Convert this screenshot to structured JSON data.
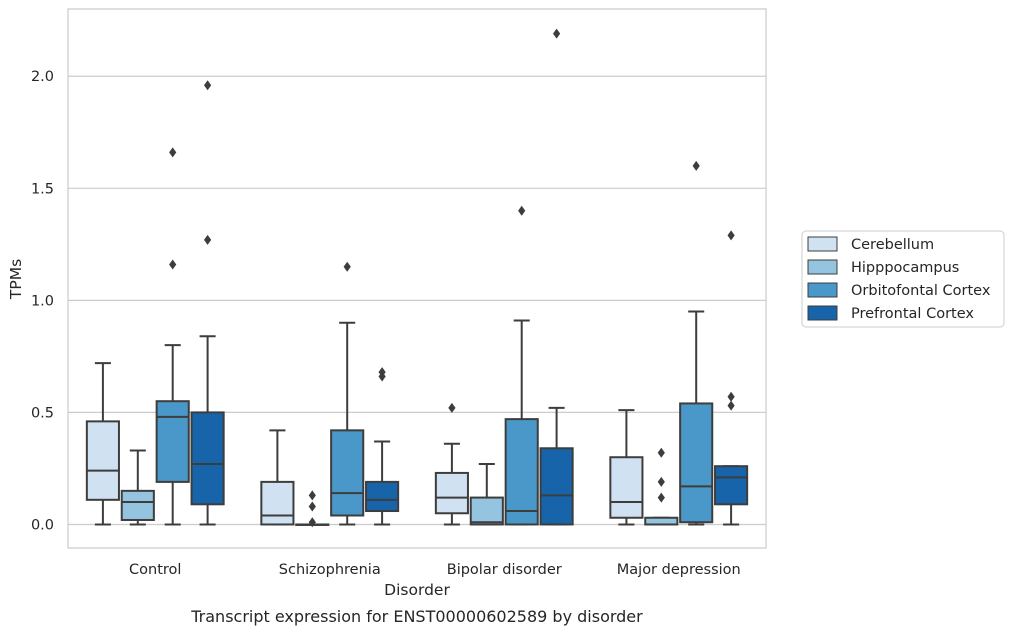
{
  "chart_data": {
    "type": "box",
    "caption": "Transcript expression for ENST00000602589 by disorder",
    "xlabel": "Disorder",
    "ylabel": "TPMs",
    "ylim": [
      -0.105,
      2.3
    ],
    "yticks": [
      0.0,
      0.5,
      1.0,
      1.5,
      2.0
    ],
    "ytick_labels": [
      "0.0",
      "0.5",
      "1.0",
      "1.5",
      "2.0"
    ],
    "categories": [
      "Control",
      "Schizophrenia",
      "Bipolar disorder",
      "Major depression"
    ],
    "grid": "horizontal",
    "legend_position": "right",
    "series": [
      {
        "name": "Cerebellum",
        "color": "#d0e1f2",
        "boxes": [
          {
            "whislo": 0.0,
            "q1": 0.11,
            "med": 0.24,
            "q3": 0.46,
            "whishi": 0.72,
            "fliers": []
          },
          {
            "whislo": 0.0,
            "q1": 0.0,
            "med": 0.04,
            "q3": 0.19,
            "whishi": 0.42,
            "fliers": []
          },
          {
            "whislo": 0.0,
            "q1": 0.05,
            "med": 0.12,
            "q3": 0.23,
            "whishi": 0.36,
            "fliers": [
              0.52
            ]
          },
          {
            "whislo": 0.0,
            "q1": 0.03,
            "med": 0.1,
            "q3": 0.3,
            "whishi": 0.51,
            "fliers": []
          }
        ]
      },
      {
        "name": "Hipppocampus",
        "color": "#94c4df",
        "boxes": [
          {
            "whislo": 0.0,
            "q1": 0.02,
            "med": 0.1,
            "q3": 0.15,
            "whishi": 0.33,
            "fliers": []
          },
          {
            "whislo": 0.0,
            "q1": 0.0,
            "med": 0.0,
            "q3": 0.0,
            "whishi": 0.0,
            "fliers": [
              0.13,
              0.08,
              0.01
            ]
          },
          {
            "whislo": 0.0,
            "q1": 0.0,
            "med": 0.01,
            "q3": 0.12,
            "whishi": 0.27,
            "fliers": []
          },
          {
            "whislo": 0.0,
            "q1": 0.0,
            "med": 0.0,
            "q3": 0.03,
            "whishi": 0.03,
            "fliers": [
              0.32,
              0.19,
              0.12
            ]
          }
        ]
      },
      {
        "name": "Orbitofontal Cortex",
        "color": "#4a98c9",
        "boxes": [
          {
            "whislo": 0.0,
            "q1": 0.19,
            "med": 0.48,
            "q3": 0.55,
            "whishi": 0.8,
            "fliers": [
              1.66,
              1.16
            ]
          },
          {
            "whislo": 0.0,
            "q1": 0.04,
            "med": 0.14,
            "q3": 0.42,
            "whishi": 0.9,
            "fliers": [
              1.15
            ]
          },
          {
            "whislo": 0.0,
            "q1": 0.0,
            "med": 0.06,
            "q3": 0.47,
            "whishi": 0.91,
            "fliers": [
              1.4
            ]
          },
          {
            "whislo": 0.0,
            "q1": 0.01,
            "med": 0.17,
            "q3": 0.54,
            "whishi": 0.95,
            "fliers": [
              1.6
            ]
          }
        ]
      },
      {
        "name": "Prefrontal Cortex",
        "color": "#1764ab",
        "boxes": [
          {
            "whislo": 0.0,
            "q1": 0.09,
            "med": 0.27,
            "q3": 0.5,
            "whishi": 0.84,
            "fliers": [
              1.96,
              1.27
            ]
          },
          {
            "whislo": 0.0,
            "q1": 0.06,
            "med": 0.11,
            "q3": 0.19,
            "whishi": 0.37,
            "fliers": [
              0.68,
              0.66
            ]
          },
          {
            "whislo": 0.0,
            "q1": 0.0,
            "med": 0.13,
            "q3": 0.34,
            "whishi": 0.52,
            "fliers": [
              2.19
            ]
          },
          {
            "whislo": 0.0,
            "q1": 0.09,
            "med": 0.21,
            "q3": 0.26,
            "whishi": 0.26,
            "fliers": [
              1.29,
              0.57,
              0.53
            ]
          }
        ]
      }
    ]
  }
}
